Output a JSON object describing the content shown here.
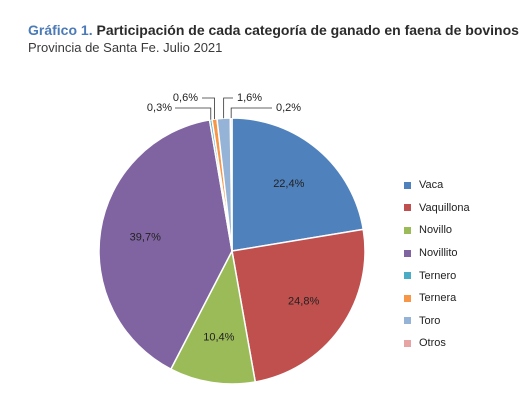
{
  "header": {
    "title_prefix": "Gráfico 1.",
    "title": "Participación de cada categoría de ganado en faena de bovinos",
    "subtitle": "Provincia de Santa Fe. Julio 2021"
  },
  "chart_data": {
    "type": "pie",
    "title": "Participación de cada categoría de ganado en faena de bovinos",
    "legend_position": "right",
    "categories": [
      "Vaca",
      "Vaquillona",
      "Novillo",
      "Novillito",
      "Ternero",
      "Ternera",
      "Toro",
      "Otros"
    ],
    "values": [
      22.4,
      24.8,
      10.4,
      39.7,
      0.3,
      0.6,
      1.6,
      0.2
    ],
    "labels": [
      "22,4%",
      "24,8%",
      "10,4%",
      "39,7%",
      "0,3%",
      "0,6%",
      "1,6%",
      "0,2%"
    ],
    "colors": [
      "#4f81bd",
      "#c0504d",
      "#9bbb59",
      "#8064a2",
      "#4bacc6",
      "#f79646",
      "#95b3d7",
      "#e6a5a4"
    ]
  }
}
